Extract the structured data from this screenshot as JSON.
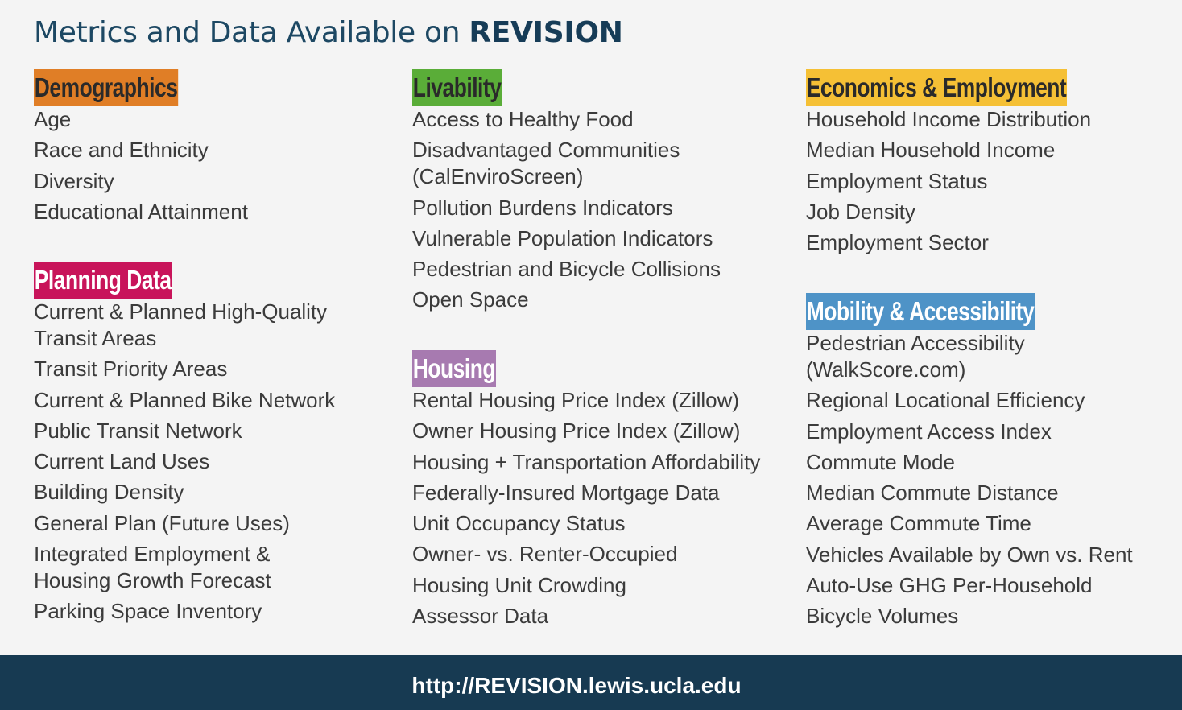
{
  "title": {
    "prefix": "Metrics and Data Available on ",
    "brand": "REVISION"
  },
  "sections": {
    "demographics": {
      "heading": "Demographics",
      "color": "#e07e26",
      "items": [
        "Age",
        "Race and Ethnicity",
        "Diversity",
        "Educational Attainment"
      ]
    },
    "planning": {
      "heading": "Planning Data",
      "color": "#c8145a",
      "items": [
        "Current & Planned High-Quality Transit Areas",
        "Transit Priority Areas",
        "Current & Planned Bike Network",
        "Public Transit Network",
        "Current Land Uses",
        "Building Density",
        "General Plan (Future Uses)",
        "Integrated Employment & Housing Growth Forecast",
        "Parking Space Inventory"
      ]
    },
    "livability": {
      "heading": "Livability",
      "color": "#5aad38",
      "items": [
        "Access to Healthy Food",
        "Disadvantaged Communities (CalEnviroScreen)",
        "Pollution Burdens Indicators",
        "Vulnerable Population Indicators",
        "Pedestrian and Bicycle Collisions",
        "Open Space"
      ]
    },
    "housing": {
      "heading": "Housing",
      "color": "#a77ab0",
      "items": [
        "Rental Housing Price Index (Zillow)",
        "Owner Housing Price Index (Zillow)",
        "Housing + Transportation Affordability",
        "Federally-Insured Mortgage Data",
        "Unit Occupancy Status",
        "Owner- vs. Renter-Occupied",
        "Housing Unit Crowding",
        "Assessor Data"
      ]
    },
    "economics": {
      "heading": "Economics & Employment",
      "color": "#f5c035",
      "items": [
        "Household Income Distribution",
        "Median Household Income",
        "Employment Status",
        "Job Density",
        "Employment Sector"
      ]
    },
    "mobility": {
      "heading": "Mobility & Accessibility",
      "color": "#4e93c7",
      "items": [
        "Pedestrian Accessibility (WalkScore.com)",
        "Regional Locational Efficiency",
        "Employment Access Index",
        "Commute Mode",
        "Median Commute Distance",
        "Average Commute Time",
        "Vehicles Available by Own vs. Rent",
        "Auto-Use GHG Per-Household",
        "Bicycle Volumes"
      ]
    }
  },
  "footer": {
    "url": "http://REVISION.lewis.ucla.edu",
    "background": "#173a52"
  }
}
